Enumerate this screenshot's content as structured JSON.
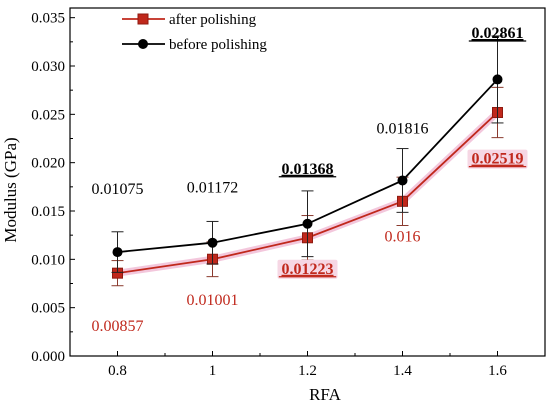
{
  "chart_data": {
    "type": "line",
    "xlabel": "RFA",
    "ylabel": "Modulus (GPa)",
    "xlim": [
      0.7,
      1.7
    ],
    "ylim": [
      0.0,
      0.036
    ],
    "x": [
      0.8,
      1.0,
      1.2,
      1.4,
      1.6
    ],
    "x_tick_labels": [
      "0.8",
      "1",
      "1.2",
      "1.4",
      "1.6"
    ],
    "y_ticks": [
      0.0,
      0.005,
      0.01,
      0.015,
      0.02,
      0.025,
      0.03,
      0.035
    ],
    "y_tick_labels": [
      "0.000",
      "0.005",
      "0.010",
      "0.015",
      "0.020",
      "0.025",
      "0.030",
      "0.035"
    ],
    "grid": false,
    "legend_position": "top-left",
    "series": [
      {
        "name": "after polishing",
        "color": "#c0281c",
        "marker": "square",
        "values": [
          0.00857,
          0.01001,
          0.01223,
          0.016,
          0.02519
        ],
        "error": [
          0.0013,
          0.0018,
          0.0023,
          0.0025,
          0.0026
        ],
        "labels": [
          {
            "text": "0.00857",
            "emphasis": false
          },
          {
            "text": "0.01001",
            "emphasis": false
          },
          {
            "text": "0.01223",
            "emphasis": true
          },
          {
            "text": "0.016",
            "emphasis": false
          },
          {
            "text": "0.02519",
            "emphasis": true
          }
        ]
      },
      {
        "name": "before polishing",
        "color": "#000000",
        "marker": "circle",
        "values": [
          0.01075,
          0.01172,
          0.01368,
          0.01816,
          0.02861
        ],
        "error": [
          0.0021,
          0.0022,
          0.0034,
          0.0033,
          0.0045
        ],
        "labels": [
          {
            "text": "0.01075",
            "emphasis": false
          },
          {
            "text": "0.01172",
            "emphasis": false
          },
          {
            "text": "0.01368",
            "emphasis": true
          },
          {
            "text": "0.01816",
            "emphasis": false
          },
          {
            "text": "0.02861",
            "emphasis": true
          }
        ]
      }
    ]
  }
}
